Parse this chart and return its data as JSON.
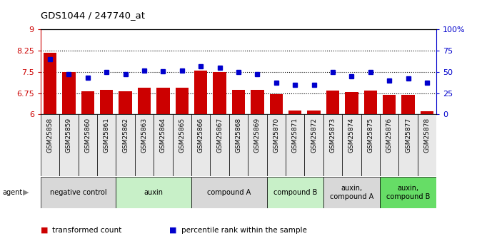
{
  "title": "GDS1044 / 247740_at",
  "samples": [
    "GSM25858",
    "GSM25859",
    "GSM25860",
    "GSM25861",
    "GSM25862",
    "GSM25863",
    "GSM25864",
    "GSM25865",
    "GSM25866",
    "GSM25867",
    "GSM25868",
    "GSM25869",
    "GSM25870",
    "GSM25871",
    "GSM25872",
    "GSM25873",
    "GSM25874",
    "GSM25875",
    "GSM25876",
    "GSM25877",
    "GSM25878"
  ],
  "bar_values": [
    8.18,
    7.49,
    6.82,
    6.88,
    6.82,
    6.95,
    6.95,
    6.95,
    7.55,
    7.5,
    6.87,
    6.87,
    6.72,
    6.13,
    6.13,
    6.84,
    6.79,
    6.84,
    6.68,
    6.68,
    6.12
  ],
  "dot_values": [
    65,
    47,
    43,
    50,
    47,
    52,
    51,
    52,
    57,
    55,
    50,
    47,
    37,
    35,
    35,
    50,
    45,
    50,
    40,
    42,
    37
  ],
  "ylim": [
    6,
    9
  ],
  "y2lim": [
    0,
    100
  ],
  "yticks": [
    6,
    6.75,
    7.5,
    8.25,
    9
  ],
  "ytick_labels": [
    "6",
    "6.75",
    "7.5",
    "8.25",
    "9"
  ],
  "y2ticks": [
    0,
    25,
    50,
    75,
    100
  ],
  "y2tick_labels": [
    "0",
    "25",
    "50",
    "75",
    "100%"
  ],
  "hlines": [
    6.75,
    7.5,
    8.25
  ],
  "bar_color": "#cc0000",
  "dot_color": "#0000cc",
  "agent_groups": [
    {
      "label": "negative control",
      "start": 0,
      "end": 4,
      "color": "#d8d8d8"
    },
    {
      "label": "auxin",
      "start": 4,
      "end": 8,
      "color": "#c8f0c8"
    },
    {
      "label": "compound A",
      "start": 8,
      "end": 12,
      "color": "#d8d8d8"
    },
    {
      "label": "compound B",
      "start": 12,
      "end": 15,
      "color": "#c8f0c8"
    },
    {
      "label": "auxin,\ncompound A",
      "start": 15,
      "end": 18,
      "color": "#d8d8d8"
    },
    {
      "label": "auxin,\ncompound B",
      "start": 18,
      "end": 21,
      "color": "#66dd66"
    }
  ],
  "legend_items": [
    {
      "label": "transformed count",
      "color": "#cc0000"
    },
    {
      "label": "percentile rank within the sample",
      "color": "#0000cc"
    }
  ],
  "fig_width": 6.68,
  "fig_height": 3.45,
  "dpi": 100
}
